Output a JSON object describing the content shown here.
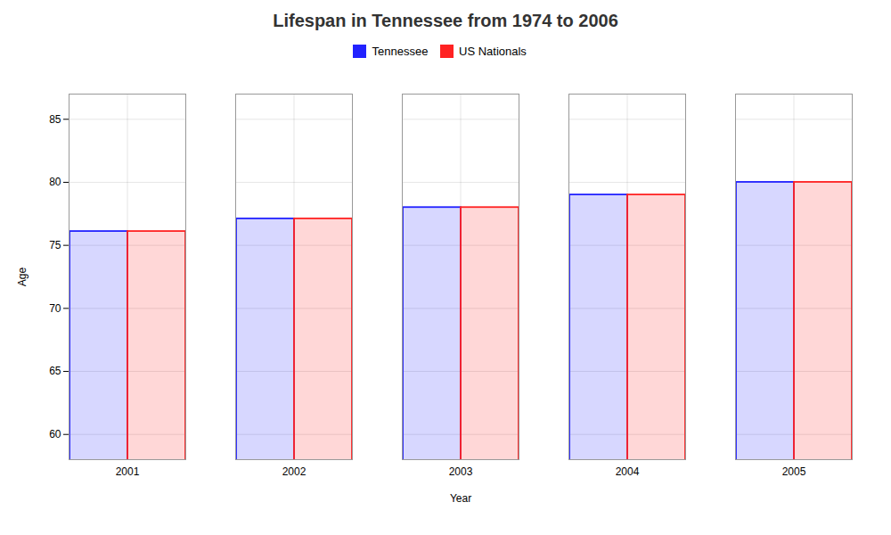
{
  "chart_data": {
    "type": "bar",
    "title": "Lifespan in Tennessee from 1974 to 2006",
    "xlabel": "Year",
    "ylabel": "Age",
    "categories": [
      "2001",
      "2002",
      "2003",
      "2004",
      "2005"
    ],
    "series": [
      {
        "name": "Tennessee",
        "color": "#2222ff",
        "values": [
          76.1,
          77.1,
          78.0,
          79.0,
          80.0
        ]
      },
      {
        "name": "US Nationals",
        "color": "#ff2222",
        "values": [
          76.1,
          77.1,
          78.0,
          79.0,
          80.0
        ]
      }
    ],
    "ylim": [
      58,
      87
    ],
    "yticks": [
      60,
      65,
      70,
      75,
      80,
      85
    ],
    "grid": true,
    "legend": "top"
  }
}
